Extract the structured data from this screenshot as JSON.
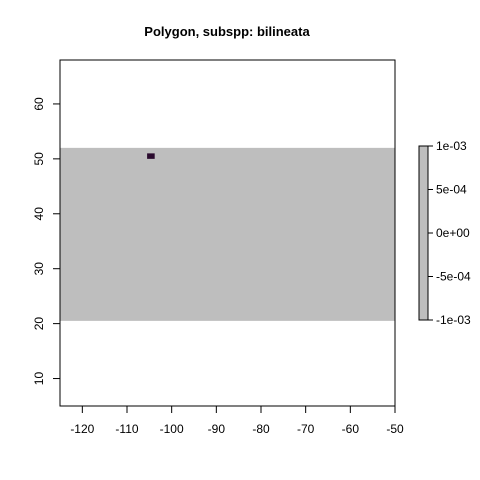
{
  "chart_data": {
    "type": "heatmap",
    "title": "Polygon, subspp: bilineata",
    "xlabel": "",
    "ylabel": "",
    "xlim": [
      -125,
      -50
    ],
    "ylim": [
      5,
      68
    ],
    "x_ticks": [
      -120,
      -110,
      -100,
      -90,
      -80,
      -70,
      -60,
      -50
    ],
    "y_ticks": [
      10,
      20,
      30,
      40,
      50,
      60
    ],
    "raster": {
      "extent": {
        "xmin": -125,
        "xmax": -50,
        "ymin": 20.5,
        "ymax": 52
      },
      "fill_value": 0,
      "fill_color": "#bebebe"
    },
    "cells": [
      {
        "xmin": -105.5,
        "xmax": -103.8,
        "ymin": 50.0,
        "ymax": 51.0,
        "color": "#2a0a2e"
      }
    ],
    "legend": {
      "position": "right",
      "labels": [
        "1e-03",
        "5e-04",
        "0e+00",
        "-5e-04",
        "-1e-03"
      ],
      "values": [
        0.001,
        0.0005,
        0,
        -0.0005,
        -0.001
      ],
      "color": "#bebebe"
    },
    "grid": false
  }
}
